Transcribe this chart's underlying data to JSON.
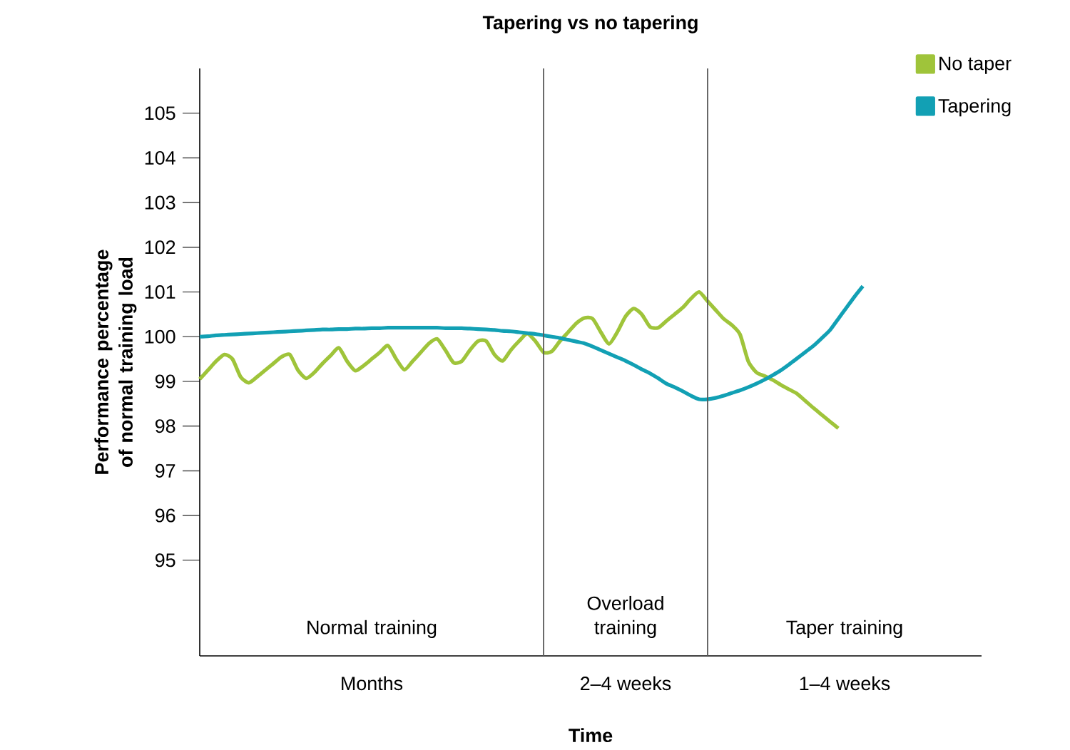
{
  "chart_data": {
    "type": "line",
    "title": "Tapering vs no tapering",
    "xlabel": "Time",
    "ylabel": "Performance percentage of normal training load",
    "categories": [
      null,
      null,
      null,
      null,
      null,
      null,
      null,
      null,
      null,
      null,
      null,
      null,
      null,
      null,
      null,
      null,
      null,
      null,
      null,
      null,
      null,
      null,
      null,
      null,
      null,
      null,
      null,
      null,
      null,
      null,
      null,
      null,
      null,
      null,
      null,
      null,
      null,
      null,
      null,
      null,
      null,
      null,
      null,
      null,
      null,
      null,
      null,
      null,
      null,
      null,
      null,
      null,
      null,
      null,
      null,
      null,
      null,
      null,
      null,
      null,
      null,
      null,
      null,
      null,
      null,
      null,
      null,
      null,
      null,
      null,
      null,
      null,
      null,
      null,
      null,
      null,
      null,
      null,
      null,
      null,
      null,
      null,
      null,
      null,
      null,
      null,
      null,
      null,
      null,
      null,
      null,
      null,
      null,
      null,
      null,
      null
    ],
    "ylim": [
      92.86,
      106
    ],
    "yticks": [
      95,
      96,
      97,
      98,
      99,
      100,
      101,
      102,
      103,
      104,
      105
    ],
    "annotations": [
      "Normal training",
      "Overload training",
      "Taper training",
      "Months",
      "2–4 weeks",
      "1–4 weeks"
    ],
    "legend": "top right",
    "grid": false,
    "marker": "none",
    "line_style": "solid",
    "series": [
      {
        "name": "No taper",
        "color": "#9fc43a",
        "values": [
          99.05,
          99.25,
          99.45,
          99.6,
          99.5,
          99.1,
          98.97,
          99.1,
          99.25,
          99.4,
          99.55,
          99.6,
          99.25,
          99.07,
          99.2,
          99.4,
          99.58,
          99.75,
          99.45,
          99.24,
          99.35,
          99.5,
          99.65,
          99.8,
          99.5,
          99.26,
          99.45,
          99.65,
          99.85,
          99.95,
          99.7,
          99.42,
          99.45,
          99.7,
          99.9,
          99.9,
          99.6,
          99.46,
          99.7,
          99.9,
          100.07,
          99.9,
          99.65,
          99.67,
          99.9,
          100.1,
          100.3,
          100.42,
          100.4,
          100.1,
          99.84,
          100.1,
          100.45,
          100.63,
          100.5,
          100.22,
          100.2,
          100.35,
          100.5,
          100.65,
          100.85,
          101.0,
          100.8,
          100.6,
          100.4,
          100.26,
          100.05,
          99.45,
          99.2,
          99.12,
          99.03,
          98.92,
          98.82,
          98.72,
          98.56,
          98.4,
          98.25,
          98.1,
          97.95,
          null,
          null,
          null,
          null,
          null,
          null,
          null,
          null,
          null,
          null,
          null,
          null,
          null,
          null,
          null,
          null,
          null
        ]
      },
      {
        "name": "Tapering",
        "color": "#12a0b4",
        "values": [
          100.0,
          100.01,
          100.03,
          100.04,
          100.05,
          100.06,
          100.07,
          100.08,
          100.09,
          100.1,
          100.11,
          100.12,
          100.13,
          100.14,
          100.15,
          100.16,
          100.16,
          100.17,
          100.17,
          100.18,
          100.18,
          100.19,
          100.19,
          100.2,
          100.2,
          100.2,
          100.2,
          100.2,
          100.2,
          100.2,
          100.19,
          100.19,
          100.19,
          100.18,
          100.17,
          100.16,
          100.15,
          100.13,
          100.12,
          100.1,
          100.08,
          100.06,
          100.03,
          100.0,
          99.97,
          99.93,
          99.89,
          99.85,
          99.78,
          99.7,
          99.62,
          99.54,
          99.46,
          99.37,
          99.27,
          99.18,
          99.07,
          98.95,
          98.87,
          98.78,
          98.68,
          98.6,
          98.6,
          98.63,
          98.68,
          98.74,
          98.8,
          98.87,
          98.95,
          99.04,
          99.14,
          99.25,
          99.38,
          99.52,
          99.66,
          99.8,
          99.97,
          100.15,
          100.4,
          100.65,
          100.9,
          101.13,
          null,
          null,
          null,
          null,
          null,
          null,
          null,
          null,
          null,
          null,
          null,
          null,
          null,
          null
        ]
      }
    ]
  }
}
